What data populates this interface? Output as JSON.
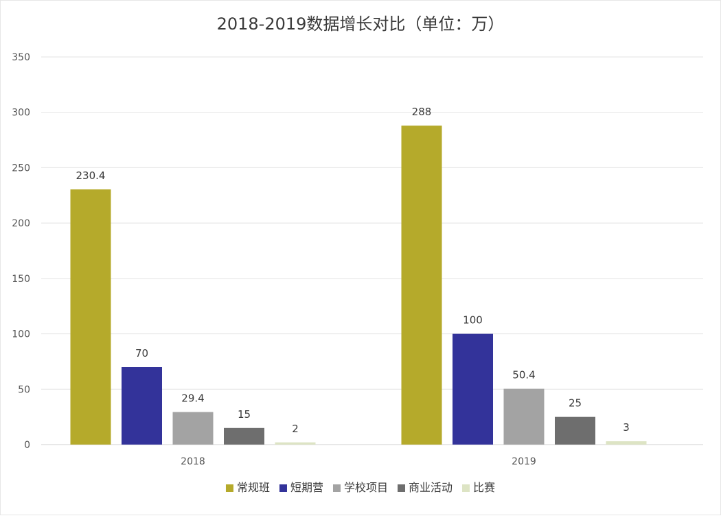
{
  "chart_data": {
    "type": "bar",
    "title": "2018-2019数据增长对比（单位：万）",
    "categories": [
      "2018",
      "2019"
    ],
    "series": [
      {
        "name": "常规班",
        "color": "#b5aa2b",
        "values": [
          230.4,
          288
        ]
      },
      {
        "name": "短期营",
        "color": "#33339a",
        "values": [
          70,
          100
        ]
      },
      {
        "name": "学校项目",
        "color": "#a3a3a3",
        "values": [
          29.4,
          50.4
        ]
      },
      {
        "name": "商业活动",
        "color": "#6e6e6e",
        "values": [
          15,
          25
        ]
      },
      {
        "name": "比赛",
        "color": "#dde4c4",
        "values": [
          2,
          3
        ]
      }
    ],
    "y_ticks": [
      "0",
      "50",
      "100",
      "150",
      "200",
      "250",
      "300",
      "350"
    ],
    "ylim": [
      0,
      350
    ],
    "grid": true,
    "legend_position": "bottom"
  }
}
